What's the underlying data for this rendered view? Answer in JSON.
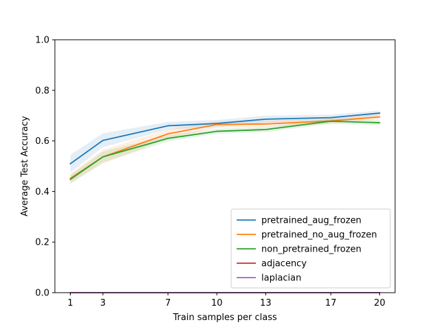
{
  "chart_data": {
    "type": "line",
    "title": "",
    "xlabel": "Train samples per class",
    "ylabel": "Average Test Accuracy",
    "x": [
      1,
      3,
      7,
      10,
      13,
      17,
      20
    ],
    "x_tick_labels": [
      "1",
      "3",
      "7",
      "10",
      "13",
      "17",
      "20"
    ],
    "ylim": [
      0.0,
      1.0
    ],
    "y_ticks": [
      0.0,
      0.2,
      0.4,
      0.6,
      0.8,
      1.0
    ],
    "y_tick_labels": [
      "0.0",
      "0.2",
      "0.4",
      "0.6",
      "0.8",
      "1.0"
    ],
    "grid": false,
    "legend_position": "lower-right",
    "series": [
      {
        "name": "pretrained_aug_frozen",
        "color": "#1f77b4",
        "values": [
          0.51,
          0.602,
          0.66,
          0.669,
          0.686,
          0.692,
          0.71
        ],
        "lower": [
          0.475,
          0.575,
          0.645,
          0.655,
          0.672,
          0.68,
          0.7
        ],
        "upper": [
          0.545,
          0.63,
          0.675,
          0.683,
          0.7,
          0.704,
          0.72
        ]
      },
      {
        "name": "pretrained_no_aug_frozen",
        "color": "#ff7f0e",
        "values": [
          0.452,
          0.537,
          0.628,
          0.665,
          0.667,
          0.679,
          0.695
        ],
        "lower": [
          0.435,
          0.51,
          0.61,
          0.652,
          0.655,
          0.668,
          0.685
        ],
        "upper": [
          0.47,
          0.565,
          0.645,
          0.678,
          0.68,
          0.69,
          0.705
        ]
      },
      {
        "name": "non_pretrained_frozen",
        "color": "#2ca02c",
        "values": [
          0.448,
          0.537,
          0.61,
          0.638,
          0.645,
          0.678,
          0.672
        ],
        "lower": [
          0.43,
          0.515,
          0.598,
          0.628,
          0.635,
          0.668,
          0.662
        ],
        "upper": [
          0.465,
          0.558,
          0.622,
          0.648,
          0.655,
          0.688,
          0.682
        ]
      },
      {
        "name": "adjacency",
        "color": "#d62728",
        "values": [
          0,
          0,
          0,
          0,
          0,
          0,
          0
        ]
      },
      {
        "name": "laplacian",
        "color": "#9467bd",
        "values": [
          0,
          0,
          0,
          0,
          0,
          0,
          0
        ]
      }
    ]
  }
}
